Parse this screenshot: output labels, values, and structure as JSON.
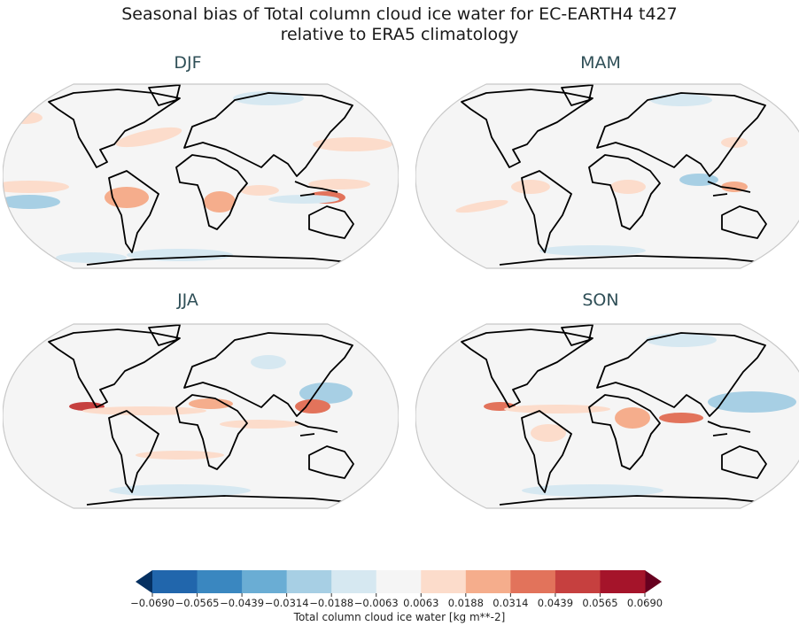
{
  "title_line1": "Seasonal bias of Total column cloud ice water for EC-EARTH4 t427",
  "title_line2": "relative to ERA5 climatology",
  "panels": [
    {
      "label": "DJF"
    },
    {
      "label": "MAM"
    },
    {
      "label": "JJA"
    },
    {
      "label": "SON"
    }
  ],
  "colorbar": {
    "label": "Total column cloud ice water [kg m**-2]",
    "ticks": [
      "−0.0690",
      "−0.0565",
      "−0.0439",
      "−0.0314",
      "−0.0188",
      "−0.0063",
      "0.0063",
      "0.0188",
      "0.0314",
      "0.0439",
      "0.0565",
      "0.0690"
    ],
    "colors": [
      "#2166ac",
      "#3a87c0",
      "#6aadd4",
      "#a7cfe4",
      "#d6e8f1",
      "#f5f5f5",
      "#fcdccb",
      "#f5ad8c",
      "#e2735b",
      "#c6403f",
      "#a5142a"
    ],
    "under_color": "#053061",
    "over_color": "#67001f",
    "extend": "both"
  }
}
